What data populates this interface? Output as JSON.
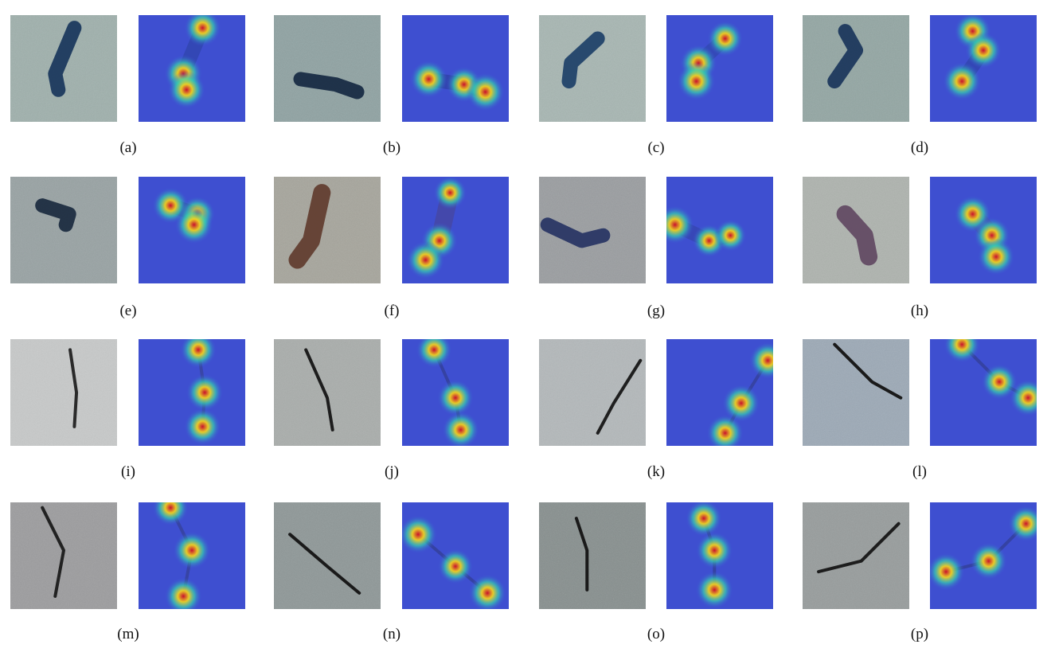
{
  "figure": {
    "panels": [
      {
        "label": "(a)",
        "kind": "spall",
        "surface": "#9fb0ac",
        "defect": "#0d2b55",
        "hotspots": [
          [
            0.6,
            0.12,
            0.9
          ],
          [
            0.42,
            0.55,
            1.0
          ],
          [
            0.45,
            0.7,
            0.95
          ]
        ]
      },
      {
        "label": "(b)",
        "kind": "spall",
        "surface": "#8fa2a2",
        "defect": "#0b1f3a",
        "hotspots": [
          [
            0.25,
            0.6,
            0.95
          ],
          [
            0.58,
            0.65,
            0.8
          ],
          [
            0.78,
            0.72,
            1.0
          ]
        ]
      },
      {
        "label": "(c)",
        "kind": "spall",
        "surface": "#a7b6b2",
        "defect": "#123661",
        "hotspots": [
          [
            0.55,
            0.22,
            0.8
          ],
          [
            0.3,
            0.45,
            0.9
          ],
          [
            0.28,
            0.62,
            1.0
          ]
        ]
      },
      {
        "label": "(d)",
        "kind": "spall",
        "surface": "#93a6a3",
        "defect": "#0f2c55",
        "hotspots": [
          [
            0.4,
            0.15,
            0.9
          ],
          [
            0.5,
            0.33,
            0.85
          ],
          [
            0.3,
            0.62,
            1.0
          ]
        ]
      },
      {
        "label": "(e)",
        "kind": "spall",
        "surface": "#98a2a3",
        "defect": "#0f2036",
        "hotspots": [
          [
            0.3,
            0.27,
            0.85
          ],
          [
            0.55,
            0.35,
            0.8
          ],
          [
            0.52,
            0.45,
            1.0
          ]
        ]
      },
      {
        "label": "(f)",
        "kind": "stain",
        "surface": "#a6a59c",
        "defect": "#5a3325",
        "hotspots": [
          [
            0.45,
            0.15,
            0.6
          ],
          [
            0.35,
            0.6,
            0.85
          ],
          [
            0.22,
            0.78,
            1.0
          ]
        ]
      },
      {
        "label": "(g)",
        "kind": "spall",
        "surface": "#9a9da0",
        "defect": "#1d2a5e",
        "hotspots": [
          [
            0.08,
            0.45,
            1.0
          ],
          [
            0.4,
            0.6,
            0.6
          ],
          [
            0.6,
            0.55,
            0.5
          ]
        ]
      },
      {
        "label": "(h)",
        "kind": "stain",
        "surface": "#aeb3ae",
        "defect": "#5a3f5c",
        "hotspots": [
          [
            0.4,
            0.35,
            0.9
          ],
          [
            0.58,
            0.55,
            0.85
          ],
          [
            0.62,
            0.75,
            0.9
          ]
        ]
      },
      {
        "label": "(i)",
        "kind": "crack",
        "surface": "#c7c9c9",
        "defect": "#2a2a2a",
        "hotspots": [
          [
            0.56,
            0.1,
            0.85
          ],
          [
            0.62,
            0.5,
            0.9
          ],
          [
            0.6,
            0.82,
            0.9
          ]
        ]
      },
      {
        "label": "(j)",
        "kind": "crack",
        "surface": "#a9adab",
        "defect": "#1d1d1d",
        "hotspots": [
          [
            0.3,
            0.1,
            0.8
          ],
          [
            0.5,
            0.55,
            0.85
          ],
          [
            0.55,
            0.85,
            0.9
          ]
        ]
      },
      {
        "label": "(k)",
        "kind": "crack",
        "surface": "#b3b8ba",
        "defect": "#1f1f1f",
        "hotspots": [
          [
            0.95,
            0.2,
            0.9
          ],
          [
            0.7,
            0.6,
            0.95
          ],
          [
            0.55,
            0.88,
            0.9
          ]
        ]
      },
      {
        "label": "(l)",
        "kind": "crack",
        "surface": "#9ca9b6",
        "defect": "#1a1a1a",
        "hotspots": [
          [
            0.3,
            0.05,
            0.85
          ],
          [
            0.65,
            0.4,
            0.8
          ],
          [
            0.92,
            0.55,
            0.9
          ]
        ]
      },
      {
        "label": "(m)",
        "kind": "crack",
        "surface": "#9c9c9e",
        "defect": "#222222",
        "hotspots": [
          [
            0.3,
            0.05,
            0.8
          ],
          [
            0.5,
            0.45,
            0.95
          ],
          [
            0.42,
            0.88,
            0.95
          ]
        ]
      },
      {
        "label": "(n)",
        "kind": "crack",
        "surface": "#8e9797",
        "defect": "#1a1a1a",
        "hotspots": [
          [
            0.15,
            0.3,
            1.0
          ],
          [
            0.5,
            0.6,
            0.75
          ],
          [
            0.8,
            0.85,
            0.95
          ]
        ]
      },
      {
        "label": "(o)",
        "kind": "crack",
        "surface": "#878f8e",
        "defect": "#1a1a1a",
        "hotspots": [
          [
            0.35,
            0.15,
            0.85
          ],
          [
            0.45,
            0.45,
            0.9
          ],
          [
            0.45,
            0.82,
            0.95
          ]
        ]
      },
      {
        "label": "(p)",
        "kind": "crack",
        "surface": "#979c9c",
        "defect": "#1d1d1d",
        "hotspots": [
          [
            0.15,
            0.65,
            0.95
          ],
          [
            0.55,
            0.55,
            0.9
          ],
          [
            0.9,
            0.2,
            0.8
          ]
        ]
      }
    ]
  }
}
